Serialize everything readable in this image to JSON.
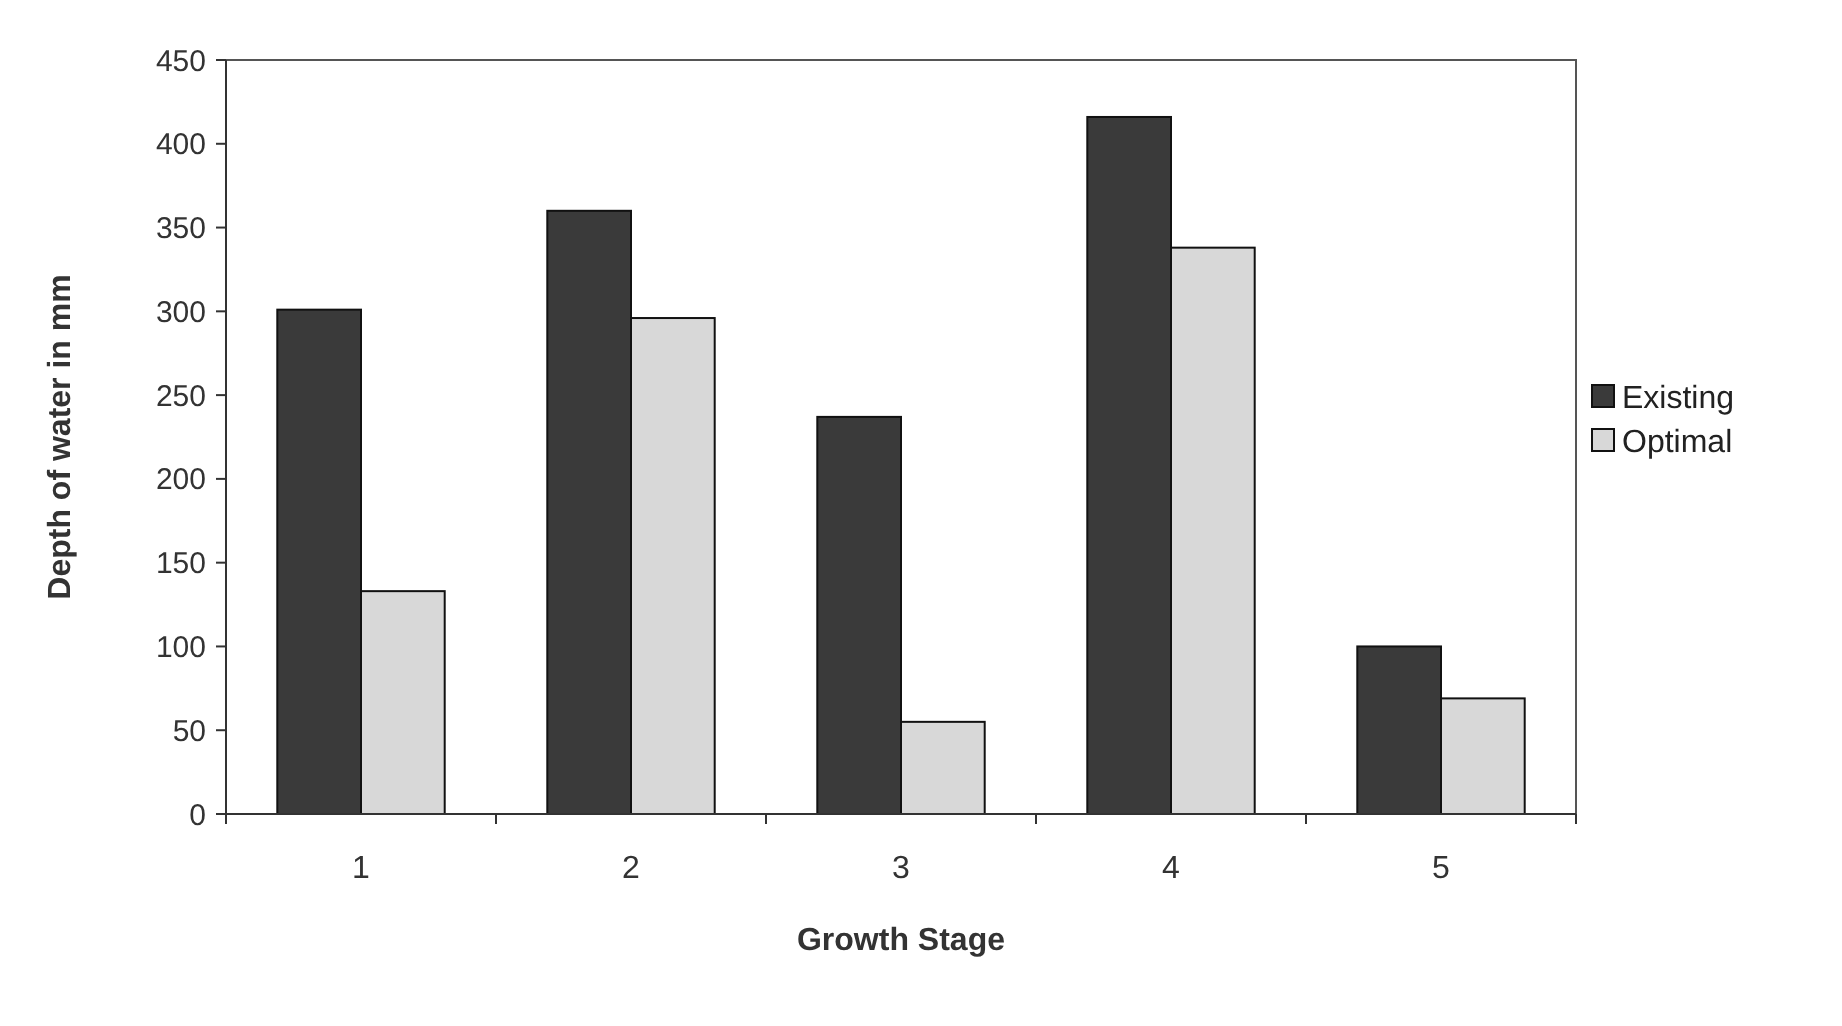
{
  "chart_data": {
    "type": "bar",
    "xlabel": "Growth Stage",
    "ylabel": "Depth of water in mm",
    "categories": [
      "1",
      "2",
      "3",
      "4",
      "5"
    ],
    "series": [
      {
        "name": "Existing",
        "color": "#3a3a3a",
        "values": [
          301,
          360,
          237,
          416,
          100
        ]
      },
      {
        "name": "Optimal",
        "color": "#d8d8d8",
        "values": [
          133,
          296,
          55,
          338,
          69
        ]
      }
    ],
    "ylim": [
      0,
      450
    ],
    "yticks": [
      0,
      50,
      100,
      150,
      200,
      250,
      300,
      350,
      400,
      450
    ],
    "grid": false,
    "legend": "right"
  }
}
